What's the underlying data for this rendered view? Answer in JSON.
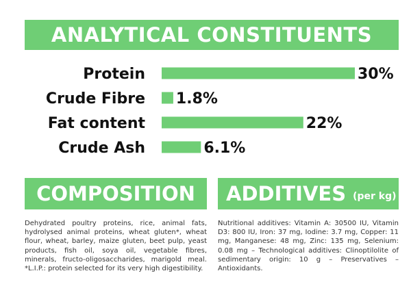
{
  "analytical": {
    "title": "ANALYTICAL CONSTITUENTS"
  },
  "chart_data": {
    "type": "bar",
    "orientation": "horizontal",
    "categories": [
      "Protein",
      "Crude Fibre",
      "Fat content",
      "Crude Ash"
    ],
    "values": [
      30,
      1.8,
      22,
      6.1
    ],
    "value_labels": [
      "30%",
      "1.8%",
      "22%",
      "6.1%"
    ],
    "unit": "%",
    "xlim": [
      0,
      30
    ],
    "grid": false,
    "bar_color": "#6fce75"
  },
  "composition": {
    "title": "COMPOSITION",
    "text": "Dehydrated poultry proteins, rice, animal fats, hydrolysed animal proteins, wheat gluten*, wheat flour, wheat, barley, maize gluten, beet pulp, yeast products, fish oil, soya oil, vegetable fibres, minerals, fructo-oligosaccharides, marigold meal. *L.I.P.: protein selected for its very high digestibility."
  },
  "additives": {
    "title": "ADDITIVES",
    "title_suffix": "(per kg)",
    "text": "Nutritional additives: Vitamin A: 30500 IU, Vitamin D3: 800 IU, Iron: 37 mg, Iodine: 3.7 mg, Copper: 11 mg, Manganese: 48 mg, Zinc: 135 mg, Selenium: 0.08 mg – Technological additives: Clinoptilolite of sedimentary origin: 10 g – Preservatives – Antioxidants."
  },
  "colors": {
    "accent": "#6fce75",
    "text": "#111111"
  }
}
